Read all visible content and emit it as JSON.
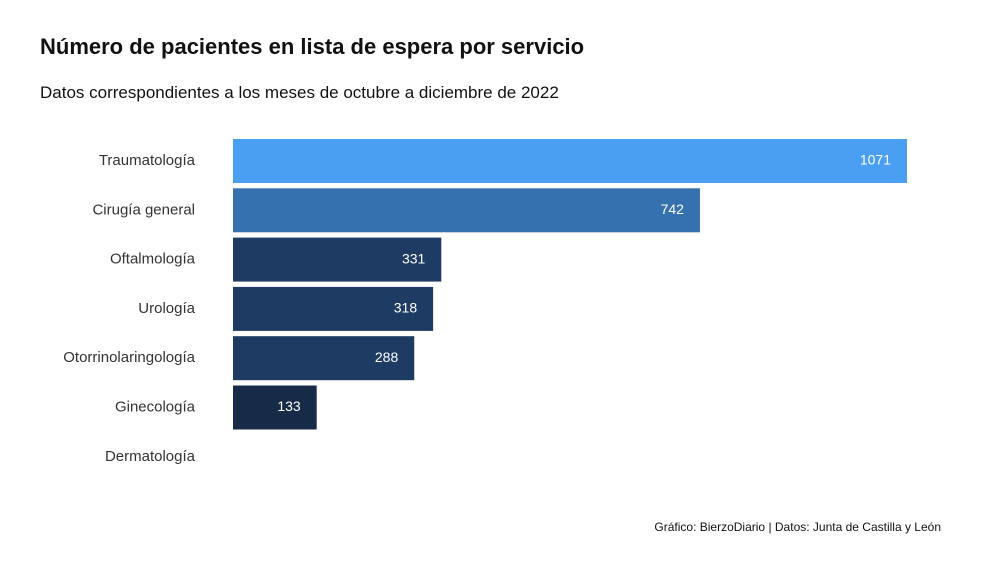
{
  "chart_data": {
    "type": "bar",
    "orientation": "horizontal",
    "title": "Número de pacientes en lista de espera por servicio",
    "subtitle": "Datos correspondientes a los meses de octubre a diciembre de 2022",
    "categories": [
      "Traumatología",
      "Cirugía general",
      "Oftalmología",
      "Urología",
      "Otorrinolaringología",
      "Ginecología",
      "Dermatología"
    ],
    "values": [
      1071,
      742,
      331,
      318,
      288,
      133,
      null
    ],
    "value_labels": [
      "1071",
      "742",
      "331",
      "318",
      "288",
      "133",
      ""
    ],
    "colors": [
      "#4a9ff2",
      "#3571ae",
      "#1e3c63",
      "#1e3c63",
      "#1e3c63",
      "#172b48",
      "#172b48"
    ],
    "xlim": [
      0,
      1071
    ],
    "grid": false,
    "legend": "none",
    "caption": "Gráfico: BierzoDiario | Datos: Junta de Castilla y León"
  }
}
